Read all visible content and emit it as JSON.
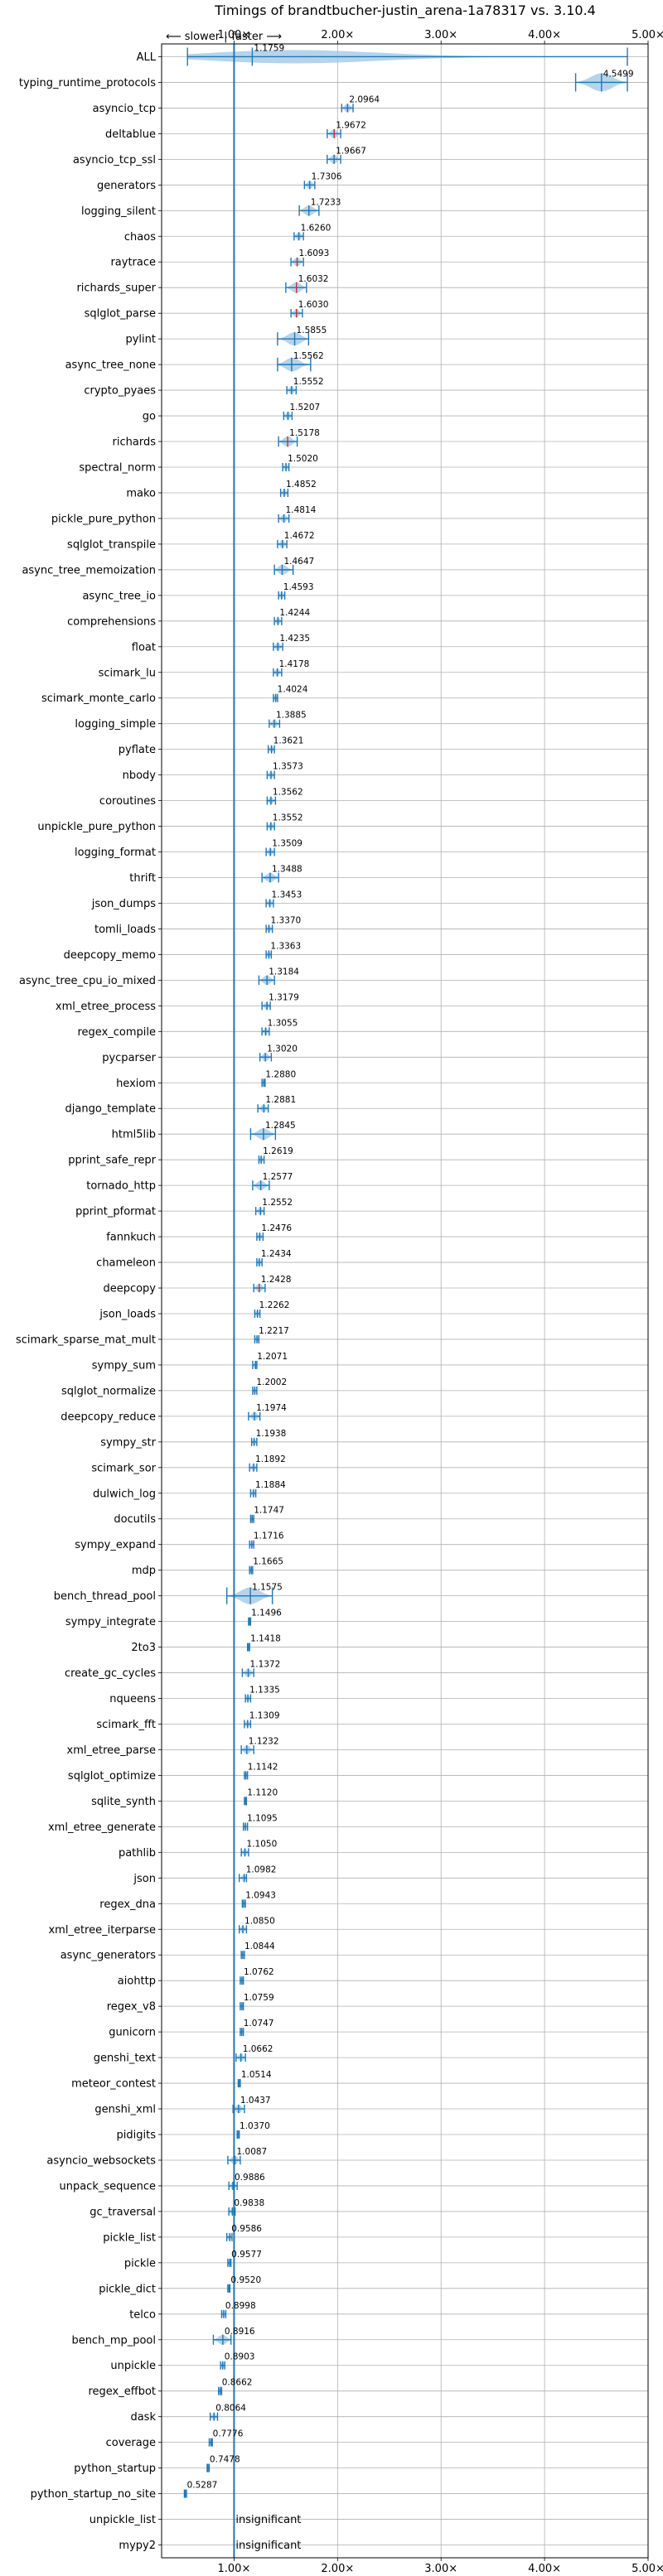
{
  "chart_data": {
    "type": "violin",
    "title": "Timings of brandtbucher-justin_arena-1a78317 vs. 3.10.4",
    "direction_labels": {
      "left": "⟵ slower",
      "separator": "|",
      "right": "faster ⟶"
    },
    "x_tick_values": [
      1.0,
      2.0,
      3.0,
      4.0,
      5.0
    ],
    "x_tick_labels": [
      "1.00×",
      "2.00×",
      "3.00×",
      "4.00×",
      "5.00×"
    ],
    "xlim": [
      0.3,
      5.0
    ],
    "reference_line": 1.0,
    "grid": true,
    "colors": {
      "fill": "#9cc6e6",
      "stroke": "#1f77b4",
      "median": "#d62728",
      "grid": "#b0b0b0"
    },
    "categories": [
      "ALL",
      "typing_runtime_protocols",
      "asyncio_tcp",
      "deltablue",
      "asyncio_tcp_ssl",
      "generators",
      "logging_silent",
      "chaos",
      "raytrace",
      "richards_super",
      "sqlglot_parse",
      "pylint",
      "async_tree_none",
      "crypto_pyaes",
      "go",
      "richards",
      "spectral_norm",
      "mako",
      "pickle_pure_python",
      "sqlglot_transpile",
      "async_tree_memoization",
      "async_tree_io",
      "comprehensions",
      "float",
      "scimark_lu",
      "scimark_monte_carlo",
      "logging_simple",
      "pyflate",
      "nbody",
      "coroutines",
      "unpickle_pure_python",
      "logging_format",
      "thrift",
      "json_dumps",
      "tomli_loads",
      "deepcopy_memo",
      "async_tree_cpu_io_mixed",
      "xml_etree_process",
      "regex_compile",
      "pycparser",
      "hexiom",
      "django_template",
      "html5lib",
      "pprint_safe_repr",
      "tornado_http",
      "pprint_pformat",
      "fannkuch",
      "chameleon",
      "deepcopy",
      "json_loads",
      "scimark_sparse_mat_mult",
      "sympy_sum",
      "sqlglot_normalize",
      "deepcopy_reduce",
      "sympy_str",
      "scimark_sor",
      "dulwich_log",
      "docutils",
      "sympy_expand",
      "mdp",
      "bench_thread_pool",
      "sympy_integrate",
      "2to3",
      "create_gc_cycles",
      "nqueens",
      "scimark_fft",
      "xml_etree_parse",
      "sqlglot_optimize",
      "sqlite_synth",
      "xml_etree_generate",
      "pathlib",
      "json",
      "regex_dna",
      "xml_etree_iterparse",
      "async_generators",
      "aiohttp",
      "regex_v8",
      "gunicorn",
      "genshi_text",
      "meteor_contest",
      "genshi_xml",
      "pidigits",
      "asyncio_websockets",
      "unpack_sequence",
      "gc_traversal",
      "pickle_list",
      "pickle",
      "pickle_dict",
      "telco",
      "bench_mp_pool",
      "unpickle",
      "regex_effbot",
      "dask",
      "coverage",
      "python_startup",
      "python_startup_no_site",
      "unpickle_list",
      "mypy2"
    ],
    "value_labels": [
      "1.1759",
      "4.5499",
      "2.0964",
      "1.9672",
      "1.9667",
      "1.7306",
      "1.7233",
      "1.6260",
      "1.6093",
      "1.6032",
      "1.6030",
      "1.5855",
      "1.5562",
      "1.5552",
      "1.5207",
      "1.5178",
      "1.5020",
      "1.4852",
      "1.4814",
      "1.4672",
      "1.4647",
      "1.4593",
      "1.4244",
      "1.4235",
      "1.4178",
      "1.4024",
      "1.3885",
      "1.3621",
      "1.3573",
      "1.3562",
      "1.3552",
      "1.3509",
      "1.3488",
      "1.3453",
      "1.3370",
      "1.3363",
      "1.3184",
      "1.3179",
      "1.3055",
      "1.3020",
      "1.2880",
      "1.2881",
      "1.2845",
      "1.2619",
      "1.2577",
      "1.2552",
      "1.2476",
      "1.2434",
      "1.2428",
      "1.2262",
      "1.2217",
      "1.2071",
      "1.2002",
      "1.1974",
      "1.1938",
      "1.1892",
      "1.1884",
      "1.1747",
      "1.1716",
      "1.1665",
      "1.1575",
      "1.1496",
      "1.1418",
      "1.1372",
      "1.1335",
      "1.1309",
      "1.1232",
      "1.1142",
      "1.1120",
      "1.1095",
      "1.1050",
      "1.0982",
      "1.0943",
      "1.0850",
      "1.0844",
      "1.0762",
      "1.0759",
      "1.0747",
      "1.0662",
      "1.0514",
      "1.0437",
      "1.0370",
      "1.0087",
      "0.9886",
      "0.9838",
      "0.9586",
      "0.9577",
      "0.9520",
      "0.8998",
      "0.8916",
      "0.8903",
      "0.8662",
      "0.8064",
      "0.7776",
      "0.7478",
      "0.5287",
      "insignificant",
      "insignificant"
    ],
    "values": [
      1.1759,
      4.5499,
      2.0964,
      1.9672,
      1.9667,
      1.7306,
      1.7233,
      1.626,
      1.6093,
      1.6032,
      1.603,
      1.5855,
      1.5562,
      1.5552,
      1.5207,
      1.5178,
      1.502,
      1.4852,
      1.4814,
      1.4672,
      1.4647,
      1.4593,
      1.4244,
      1.4235,
      1.4178,
      1.4024,
      1.3885,
      1.3621,
      1.3573,
      1.3562,
      1.3552,
      1.3509,
      1.3488,
      1.3453,
      1.337,
      1.3363,
      1.3184,
      1.3179,
      1.3055,
      1.302,
      1.288,
      1.2881,
      1.2845,
      1.2619,
      1.2577,
      1.2552,
      1.2476,
      1.2434,
      1.2428,
      1.2262,
      1.2217,
      1.2071,
      1.2002,
      1.1974,
      1.1938,
      1.1892,
      1.1884,
      1.1747,
      1.1716,
      1.1665,
      1.1575,
      1.1496,
      1.1418,
      1.1372,
      1.1335,
      1.1309,
      1.1232,
      1.1142,
      1.112,
      1.1095,
      1.105,
      1.0982,
      1.0943,
      1.085,
      1.0844,
      1.0762,
      1.0759,
      1.0747,
      1.0662,
      1.0514,
      1.0437,
      1.037,
      1.0087,
      0.9886,
      0.9838,
      0.9586,
      0.9577,
      0.952,
      0.8998,
      0.8916,
      0.8903,
      0.8662,
      0.8064,
      0.7776,
      0.7478,
      0.5287,
      null,
      null
    ],
    "min_values": [
      0.55,
      4.3,
      2.04,
      1.9,
      1.9,
      1.68,
      1.63,
      1.58,
      1.55,
      1.5,
      1.55,
      1.42,
      1.42,
      1.51,
      1.48,
      1.43,
      1.47,
      1.45,
      1.43,
      1.42,
      1.39,
      1.43,
      1.39,
      1.38,
      1.38,
      1.38,
      1.34,
      1.33,
      1.32,
      1.32,
      1.32,
      1.31,
      1.27,
      1.31,
      1.31,
      1.31,
      1.24,
      1.27,
      1.27,
      1.25,
      1.27,
      1.23,
      1.16,
      1.24,
      1.18,
      1.21,
      1.22,
      1.22,
      1.19,
      1.2,
      1.2,
      1.18,
      1.18,
      1.14,
      1.17,
      1.15,
      1.16,
      1.16,
      1.15,
      1.15,
      0.93,
      1.14,
      1.13,
      1.08,
      1.11,
      1.1,
      1.07,
      1.1,
      1.1,
      1.09,
      1.07,
      1.05,
      1.08,
      1.05,
      1.07,
      1.06,
      1.06,
      1.06,
      1.02,
      1.04,
      0.99,
      1.03,
      0.94,
      0.95,
      0.95,
      0.93,
      0.94,
      0.94,
      0.88,
      0.8,
      0.87,
      0.85,
      0.77,
      0.76,
      0.74,
      0.52,
      null,
      null
    ],
    "max_values": [
      4.8,
      4.8,
      2.15,
      2.03,
      2.03,
      1.78,
      1.82,
      1.67,
      1.67,
      1.7,
      1.66,
      1.72,
      1.74,
      1.6,
      1.56,
      1.61,
      1.53,
      1.52,
      1.53,
      1.51,
      1.57,
      1.49,
      1.46,
      1.47,
      1.46,
      1.42,
      1.44,
      1.39,
      1.39,
      1.4,
      1.39,
      1.39,
      1.43,
      1.38,
      1.37,
      1.36,
      1.39,
      1.35,
      1.34,
      1.36,
      1.3,
      1.33,
      1.4,
      1.29,
      1.34,
      1.29,
      1.28,
      1.27,
      1.3,
      1.25,
      1.24,
      1.22,
      1.22,
      1.25,
      1.22,
      1.22,
      1.21,
      1.19,
      1.19,
      1.18,
      1.37,
      1.16,
      1.15,
      1.19,
      1.16,
      1.16,
      1.19,
      1.13,
      1.12,
      1.13,
      1.14,
      1.12,
      1.11,
      1.12,
      1.1,
      1.09,
      1.09,
      1.09,
      1.11,
      1.06,
      1.1,
      1.05,
      1.06,
      1.03,
      1.01,
      0.98,
      0.97,
      0.96,
      0.92,
      0.97,
      0.91,
      0.88,
      0.84,
      0.79,
      0.76,
      0.54,
      null,
      null
    ],
    "median_highlight": [
      "deltablue",
      "raytrace",
      "richards_super",
      "sqlglot_parse",
      "richards",
      "deepcopy"
    ]
  }
}
